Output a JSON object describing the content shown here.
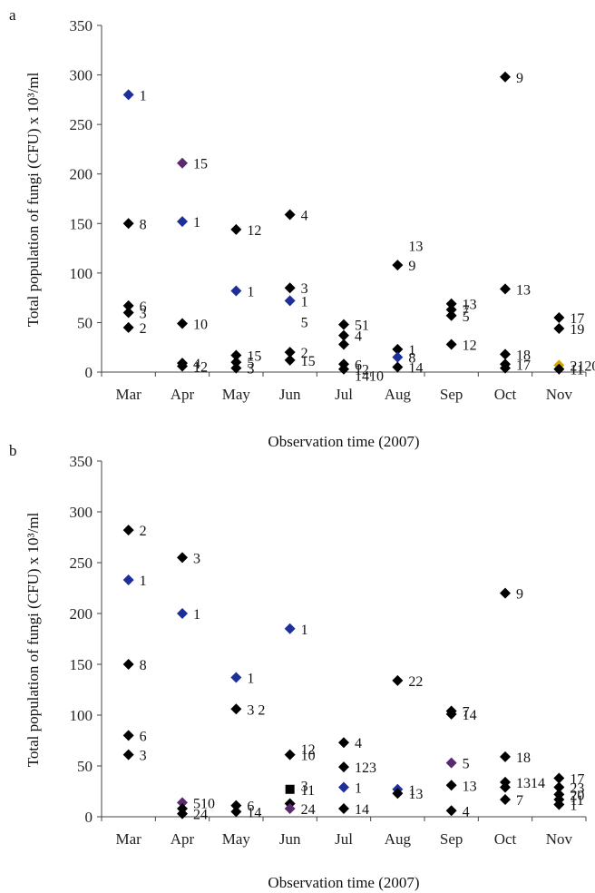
{
  "chart_data": [
    {
      "type": "scatter",
      "panel": "a",
      "ylabel": "Total population of fungi (CFU) x 10³/ml",
      "xlabel": "Observation time (2007)",
      "categories": [
        "Mar",
        "Apr",
        "May",
        "Jun",
        "Jul",
        "Aug",
        "Sep",
        "Oct",
        "Nov"
      ],
      "ylim": [
        0,
        350
      ],
      "yticks": [
        "0",
        "50",
        "100",
        "150",
        "200",
        "250",
        "300",
        "350"
      ],
      "grid": false,
      "points": [
        {
          "x": "Mar",
          "y": 280,
          "label": "1",
          "color": "#1f2f9a"
        },
        {
          "x": "Mar",
          "y": 150,
          "label": "8",
          "color": "#000000"
        },
        {
          "x": "Mar",
          "y": 67,
          "label": "6",
          "color": "#000000"
        },
        {
          "x": "Mar",
          "y": 60,
          "label": "3",
          "color": "#000000"
        },
        {
          "x": "Mar",
          "y": 45,
          "label": "2",
          "color": "#000000"
        },
        {
          "x": "Apr",
          "y": 211,
          "label": "15",
          "color": "#5b2a6e"
        },
        {
          "x": "Apr",
          "y": 152,
          "label": "1",
          "color": "#1f2f9a"
        },
        {
          "x": "Apr",
          "y": 49,
          "label": "10",
          "color": "#000000"
        },
        {
          "x": "Apr",
          "y": 9,
          "label": "4",
          "color": "#000000"
        },
        {
          "x": "Apr",
          "y": 6,
          "label": "12",
          "color": "#000000"
        },
        {
          "x": "May",
          "y": 144,
          "label": "12",
          "color": "#000000"
        },
        {
          "x": "May",
          "y": 82,
          "label": "1",
          "color": "#1f2f9a"
        },
        {
          "x": "May",
          "y": 17,
          "label": "15",
          "color": "#000000"
        },
        {
          "x": "May",
          "y": 10,
          "label": "5",
          "color": "#000000"
        },
        {
          "x": "May",
          "y": 4,
          "label": "3",
          "color": "#000000"
        },
        {
          "x": "Jun",
          "y": 159,
          "label": "4",
          "color": "#000000"
        },
        {
          "x": "Jun",
          "y": 85,
          "label": "3",
          "color": "#000000"
        },
        {
          "x": "Jun",
          "y": 72,
          "label": "1",
          "color": "#1f2f9a"
        },
        {
          "x": "Jun",
          "y": 20,
          "label": "2",
          "color": "#000000"
        },
        {
          "x": "Jun",
          "y": 12,
          "label": "15",
          "color": "#000000"
        },
        {
          "x": "Jul",
          "y": 48,
          "label": "51",
          "color": "#000000"
        },
        {
          "x": "Jul",
          "y": 37,
          "label": "4",
          "color": "#000000"
        },
        {
          "x": "Jul",
          "y": 28,
          "label": "",
          "color": "#000000"
        },
        {
          "x": "Jul",
          "y": 8,
          "label": "6",
          "color": "#000000"
        },
        {
          "x": "Jul",
          "y": 3,
          "label": "12",
          "color": "#000000"
        },
        {
          "x": "Aug",
          "y": 108,
          "label": "9",
          "color": "#000000"
        },
        {
          "x": "Aug",
          "y": 23,
          "label": "1",
          "color": "#000000"
        },
        {
          "x": "Aug",
          "y": 15,
          "label": "8",
          "color": "#1f2f9a"
        },
        {
          "x": "Aug",
          "y": 5,
          "label": "14",
          "color": "#000000"
        },
        {
          "x": "Sep",
          "y": 69,
          "label": "13",
          "color": "#000000"
        },
        {
          "x": "Sep",
          "y": 63,
          "label": "7",
          "color": "#000000"
        },
        {
          "x": "Sep",
          "y": 57,
          "label": "5",
          "color": "#000000"
        },
        {
          "x": "Sep",
          "y": 28,
          "label": "12",
          "color": "#000000"
        },
        {
          "x": "Oct",
          "y": 298,
          "label": "9",
          "color": "#000000"
        },
        {
          "x": "Oct",
          "y": 84,
          "label": "13",
          "color": "#000000"
        },
        {
          "x": "Oct",
          "y": 18,
          "label": "18",
          "color": "#000000"
        },
        {
          "x": "Oct",
          "y": 8,
          "label": "17",
          "color": "#000000"
        },
        {
          "x": "Oct",
          "y": 4,
          "label": "",
          "color": "#000000"
        },
        {
          "x": "Nov",
          "y": 55,
          "label": "17",
          "color": "#000000"
        },
        {
          "x": "Nov",
          "y": 44,
          "label": "19",
          "color": "#000000"
        },
        {
          "x": "Nov",
          "y": 7,
          "label": "2120",
          "color": "#d4a800"
        },
        {
          "x": "Nov",
          "y": 3,
          "label": "11",
          "color": "#000000"
        }
      ],
      "extra_labels": [
        {
          "x": "Jun",
          "y": 51,
          "label": "5"
        },
        {
          "x": "Aug",
          "y": 128,
          "label": "13"
        },
        {
          "x": "Jul",
          "y": -3,
          "label": "1410"
        }
      ]
    },
    {
      "type": "scatter",
      "panel": "b",
      "ylabel": "Total population of fungi (CFU) x 10³/ml",
      "xlabel": "Observation time (2007)",
      "categories": [
        "Mar",
        "Apr",
        "May",
        "Jun",
        "Jul",
        "Aug",
        "Sep",
        "Oct",
        "Nov"
      ],
      "ylim": [
        0,
        350
      ],
      "yticks": [
        "0",
        "50",
        "100",
        "150",
        "200",
        "250",
        "300",
        "350"
      ],
      "grid": false,
      "points": [
        {
          "x": "Mar",
          "y": 282,
          "label": "2",
          "color": "#000000"
        },
        {
          "x": "Mar",
          "y": 233,
          "label": "1",
          "color": "#1f2f9a"
        },
        {
          "x": "Mar",
          "y": 150,
          "label": "8",
          "color": "#000000"
        },
        {
          "x": "Mar",
          "y": 80,
          "label": "6",
          "color": "#000000"
        },
        {
          "x": "Mar",
          "y": 61,
          "label": "3",
          "color": "#000000"
        },
        {
          "x": "Apr",
          "y": 255,
          "label": "3",
          "color": "#000000"
        },
        {
          "x": "Apr",
          "y": 200,
          "label": "1",
          "color": "#1f2f9a"
        },
        {
          "x": "Apr",
          "y": 14,
          "label": "510",
          "color": "#5b2a6e"
        },
        {
          "x": "Apr",
          "y": 8,
          "label": "",
          "color": "#000000"
        },
        {
          "x": "Apr",
          "y": 3,
          "label": "24",
          "color": "#000000"
        },
        {
          "x": "May",
          "y": 137,
          "label": "1",
          "color": "#1f2f9a"
        },
        {
          "x": "May",
          "y": 106,
          "label": "3 2",
          "color": "#000000"
        },
        {
          "x": "May",
          "y": 11,
          "label": "6",
          "color": "#000000"
        },
        {
          "x": "May",
          "y": 5,
          "label": "14",
          "color": "#000000"
        },
        {
          "x": "Jun",
          "y": 185,
          "label": "1",
          "color": "#1f2f9a"
        },
        {
          "x": "Jun",
          "y": 61,
          "label": "10",
          "color": "#000000"
        },
        {
          "x": "Jun",
          "y": 27,
          "label": "11",
          "color": "#000000",
          "shape": "square"
        },
        {
          "x": "Jun",
          "y": 13,
          "label": "",
          "color": "#000000"
        },
        {
          "x": "Jun",
          "y": 8,
          "label": "24",
          "color": "#5b2a6e"
        },
        {
          "x": "Jul",
          "y": 73,
          "label": "4",
          "color": "#000000"
        },
        {
          "x": "Jul",
          "y": 49,
          "label": "123",
          "color": "#000000"
        },
        {
          "x": "Jul",
          "y": 29,
          "label": "1",
          "color": "#1f2f9a"
        },
        {
          "x": "Jul",
          "y": 8,
          "label": "14",
          "color": "#000000"
        },
        {
          "x": "Aug",
          "y": 134,
          "label": "22",
          "color": "#000000"
        },
        {
          "x": "Aug",
          "y": 27,
          "label": "1",
          "color": "#1f2f9a"
        },
        {
          "x": "Aug",
          "y": 23,
          "label": "13",
          "color": "#000000"
        },
        {
          "x": "Sep",
          "y": 104,
          "label": "7",
          "color": "#000000"
        },
        {
          "x": "Sep",
          "y": 101,
          "label": "14",
          "color": "#000000"
        },
        {
          "x": "Sep",
          "y": 53,
          "label": "5",
          "color": "#5b2a6e"
        },
        {
          "x": "Sep",
          "y": 31,
          "label": "13",
          "color": "#000000"
        },
        {
          "x": "Sep",
          "y": 6,
          "label": "4",
          "color": "#000000"
        },
        {
          "x": "Oct",
          "y": 220,
          "label": "9",
          "color": "#000000"
        },
        {
          "x": "Oct",
          "y": 59,
          "label": "18",
          "color": "#000000"
        },
        {
          "x": "Oct",
          "y": 34,
          "label": "1314",
          "color": "#000000"
        },
        {
          "x": "Oct",
          "y": 29,
          "label": "",
          "color": "#000000"
        },
        {
          "x": "Oct",
          "y": 17,
          "label": "7",
          "color": "#000000"
        },
        {
          "x": "Nov",
          "y": 38,
          "label": "17",
          "color": "#000000"
        },
        {
          "x": "Nov",
          "y": 29,
          "label": "23",
          "color": "#000000"
        },
        {
          "x": "Nov",
          "y": 22,
          "label": "20",
          "color": "#000000"
        },
        {
          "x": "Nov",
          "y": 17,
          "label": "11",
          "color": "#000000"
        },
        {
          "x": "Nov",
          "y": 12,
          "label": "1",
          "color": "#000000"
        }
      ],
      "extra_labels": [
        {
          "x": "Jun",
          "y": 67,
          "label": "12"
        },
        {
          "x": "Jun",
          "y": 31,
          "label": "3"
        }
      ]
    }
  ]
}
